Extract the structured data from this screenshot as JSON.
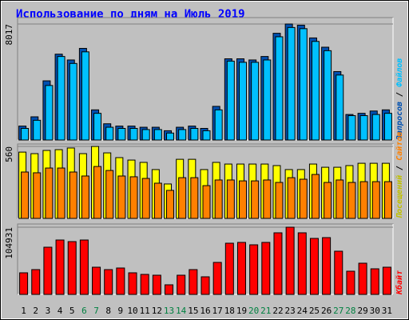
{
  "chart_data": [
    {
      "type": "bar",
      "title": "Использование по дням на Июль 2019",
      "legend_separator": "/",
      "ylim": [
        0,
        8460
      ],
      "yticks": [
        8017
      ],
      "series": [
        {
          "name": "Запросов",
          "color": "#0050b0",
          "values": [
            962,
            1603,
            4089,
            5933,
            5532,
            6333,
            2084,
            1122,
            962,
            962,
            882,
            882,
            641,
            882,
            962,
            802,
            2325,
            5612,
            5612,
            5532,
            5772,
            7376,
            8017,
            7937,
            7055,
            6414,
            4730,
            1764,
            1844,
            2004,
            2084
          ]
        },
        {
          "name": "Файлов",
          "color": "#00c0ff",
          "values": [
            802,
            1363,
            3768,
            5772,
            5291,
            6093,
            1844,
            882,
            802,
            802,
            722,
            722,
            481,
            722,
            802,
            641,
            2084,
            5452,
            5371,
            5371,
            5532,
            7135,
            7776,
            7696,
            6814,
            6173,
            4490,
            1684,
            1684,
            1764,
            1844
          ]
        }
      ]
    },
    {
      "type": "bar",
      "legend_separator": "/",
      "ylim": [
        0,
        579
      ],
      "yticks": [
        560
      ],
      "series": [
        {
          "name": "Посещений",
          "color": "#ffff00",
          "values": [
            516,
            504,
            529,
            535,
            548,
            504,
            560,
            510,
            473,
            454,
            436,
            380,
            268,
            460,
            460,
            380,
            436,
            423,
            423,
            423,
            423,
            411,
            380,
            380,
            423,
            398,
            398,
            411,
            429,
            429,
            429
          ]
        },
        {
          "name": "Сайтов",
          "color": "#ff8000",
          "values": [
            361,
            355,
            392,
            392,
            361,
            330,
            404,
            373,
            330,
            324,
            311,
            274,
            218,
            317,
            317,
            255,
            299,
            299,
            292,
            292,
            299,
            280,
            317,
            305,
            342,
            280,
            299,
            280,
            286,
            286,
            286
          ]
        }
      ]
    },
    {
      "type": "bar",
      "ylim": [
        0,
        109928
      ],
      "yticks": [
        104931
      ],
      "categories": [
        "1",
        "2",
        "3",
        "4",
        "5",
        "6",
        "7",
        "8",
        "9",
        "10",
        "11",
        "12",
        "13",
        "14",
        "15",
        "16",
        "17",
        "18",
        "19",
        "20",
        "21",
        "22",
        "23",
        "24",
        "25",
        "26",
        "27",
        "28",
        "29",
        "30",
        "31"
      ],
      "category_colors": [
        "#000000",
        "#000000",
        "#000000",
        "#000000",
        "#000000",
        "#008040",
        "#008040",
        "#000000",
        "#000000",
        "#000000",
        "#000000",
        "#000000",
        "#008040",
        "#008040",
        "#000000",
        "#000000",
        "#000000",
        "#000000",
        "#000000",
        "#008040",
        "#008040",
        "#000000",
        "#000000",
        "#000000",
        "#000000",
        "#000000",
        "#008040",
        "#008040",
        "#000000",
        "#000000",
        "#000000"
      ],
      "series": [
        {
          "name": "Кбайт",
          "color": "#ff0000",
          "values": [
            33728,
            38725,
            73702,
            84945,
            82447,
            84945,
            42472,
            38725,
            41223,
            33728,
            31230,
            29980,
            14990,
            29980,
            38725,
            27482,
            49967,
            79948,
            81197,
            77450,
            81197,
            96187,
            104931,
            96187,
            87443,
            88693,
            67456,
            36226,
            48718,
            39974,
            42472
          ]
        }
      ]
    }
  ]
}
